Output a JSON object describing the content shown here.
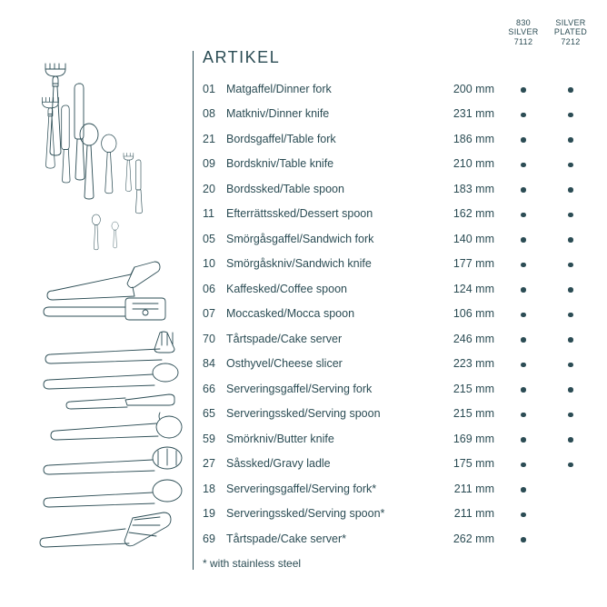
{
  "title": "ARTIKEL",
  "colHeaders": [
    {
      "l1": "830",
      "l2": "SILVER",
      "l3": "7112"
    },
    {
      "l1": "SILVER",
      "l2": "PLATED",
      "l3": "7212"
    }
  ],
  "rows": [
    {
      "num": "01",
      "name": "Matgaffel/Dinner fork",
      "size": "200 mm",
      "c1": true,
      "c2": true
    },
    {
      "num": "08",
      "name": "Matkniv/Dinner knife",
      "size": "231 mm",
      "c1": true,
      "c2": true
    },
    {
      "num": "21",
      "name": "Bordsgaffel/Table fork",
      "size": "186 mm",
      "c1": true,
      "c2": true
    },
    {
      "num": "09",
      "name": "Bordskniv/Table knife",
      "size": "210 mm",
      "c1": true,
      "c2": true
    },
    {
      "num": "20",
      "name": "Bordssked/Table spoon",
      "size": "183 mm",
      "c1": true,
      "c2": true
    },
    {
      "num": "11",
      "name": "Efterrättssked/Dessert spoon",
      "size": "162 mm",
      "c1": true,
      "c2": true
    },
    {
      "num": "05",
      "name": "Smörgåsgaffel/Sandwich fork",
      "size": "140 mm",
      "c1": true,
      "c2": true
    },
    {
      "num": "10",
      "name": "Smörgåskniv/Sandwich knife",
      "size": "177 mm",
      "c1": true,
      "c2": true
    },
    {
      "num": "06",
      "name": "Kaffesked/Coffee spoon",
      "size": "124 mm",
      "c1": true,
      "c2": true
    },
    {
      "num": "07",
      "name": "Moccasked/Mocca spoon",
      "size": "106 mm",
      "c1": true,
      "c2": true
    },
    {
      "num": "70",
      "name": "Tårtspade/Cake server",
      "size": "246 mm",
      "c1": true,
      "c2": true
    },
    {
      "num": "84",
      "name": "Osthyvel/Cheese slicer",
      "size": "223 mm",
      "c1": true,
      "c2": true
    },
    {
      "num": "66",
      "name": "Serveringsgaffel/Serving fork",
      "size": "215 mm",
      "c1": true,
      "c2": true
    },
    {
      "num": "65",
      "name": "Serveringssked/Serving spoon",
      "size": "215 mm",
      "c1": true,
      "c2": true
    },
    {
      "num": "59",
      "name": "Smörkniv/Butter knife",
      "size": "169 mm",
      "c1": true,
      "c2": true
    },
    {
      "num": "27",
      "name": "Såssked/Gravy ladle",
      "size": "175 mm",
      "c1": true,
      "c2": true
    },
    {
      "num": "18",
      "name": "Serveringsgaffel/Serving fork*",
      "size": "211 mm",
      "c1": true,
      "c2": false
    },
    {
      "num": "19",
      "name": "Serveringssked/Serving spoon*",
      "size": "211 mm",
      "c1": true,
      "c2": false
    },
    {
      "num": "69",
      "name": "Tårtspade/Cake server*",
      "size": "262 mm",
      "c1": true,
      "c2": false
    }
  ],
  "footnote": "* with stainless steel",
  "colors": {
    "ink": "#2b4c54",
    "bg": "#ffffff"
  },
  "svg": {
    "stroke": "#2b4c54",
    "strokeWidth": 0.9
  }
}
